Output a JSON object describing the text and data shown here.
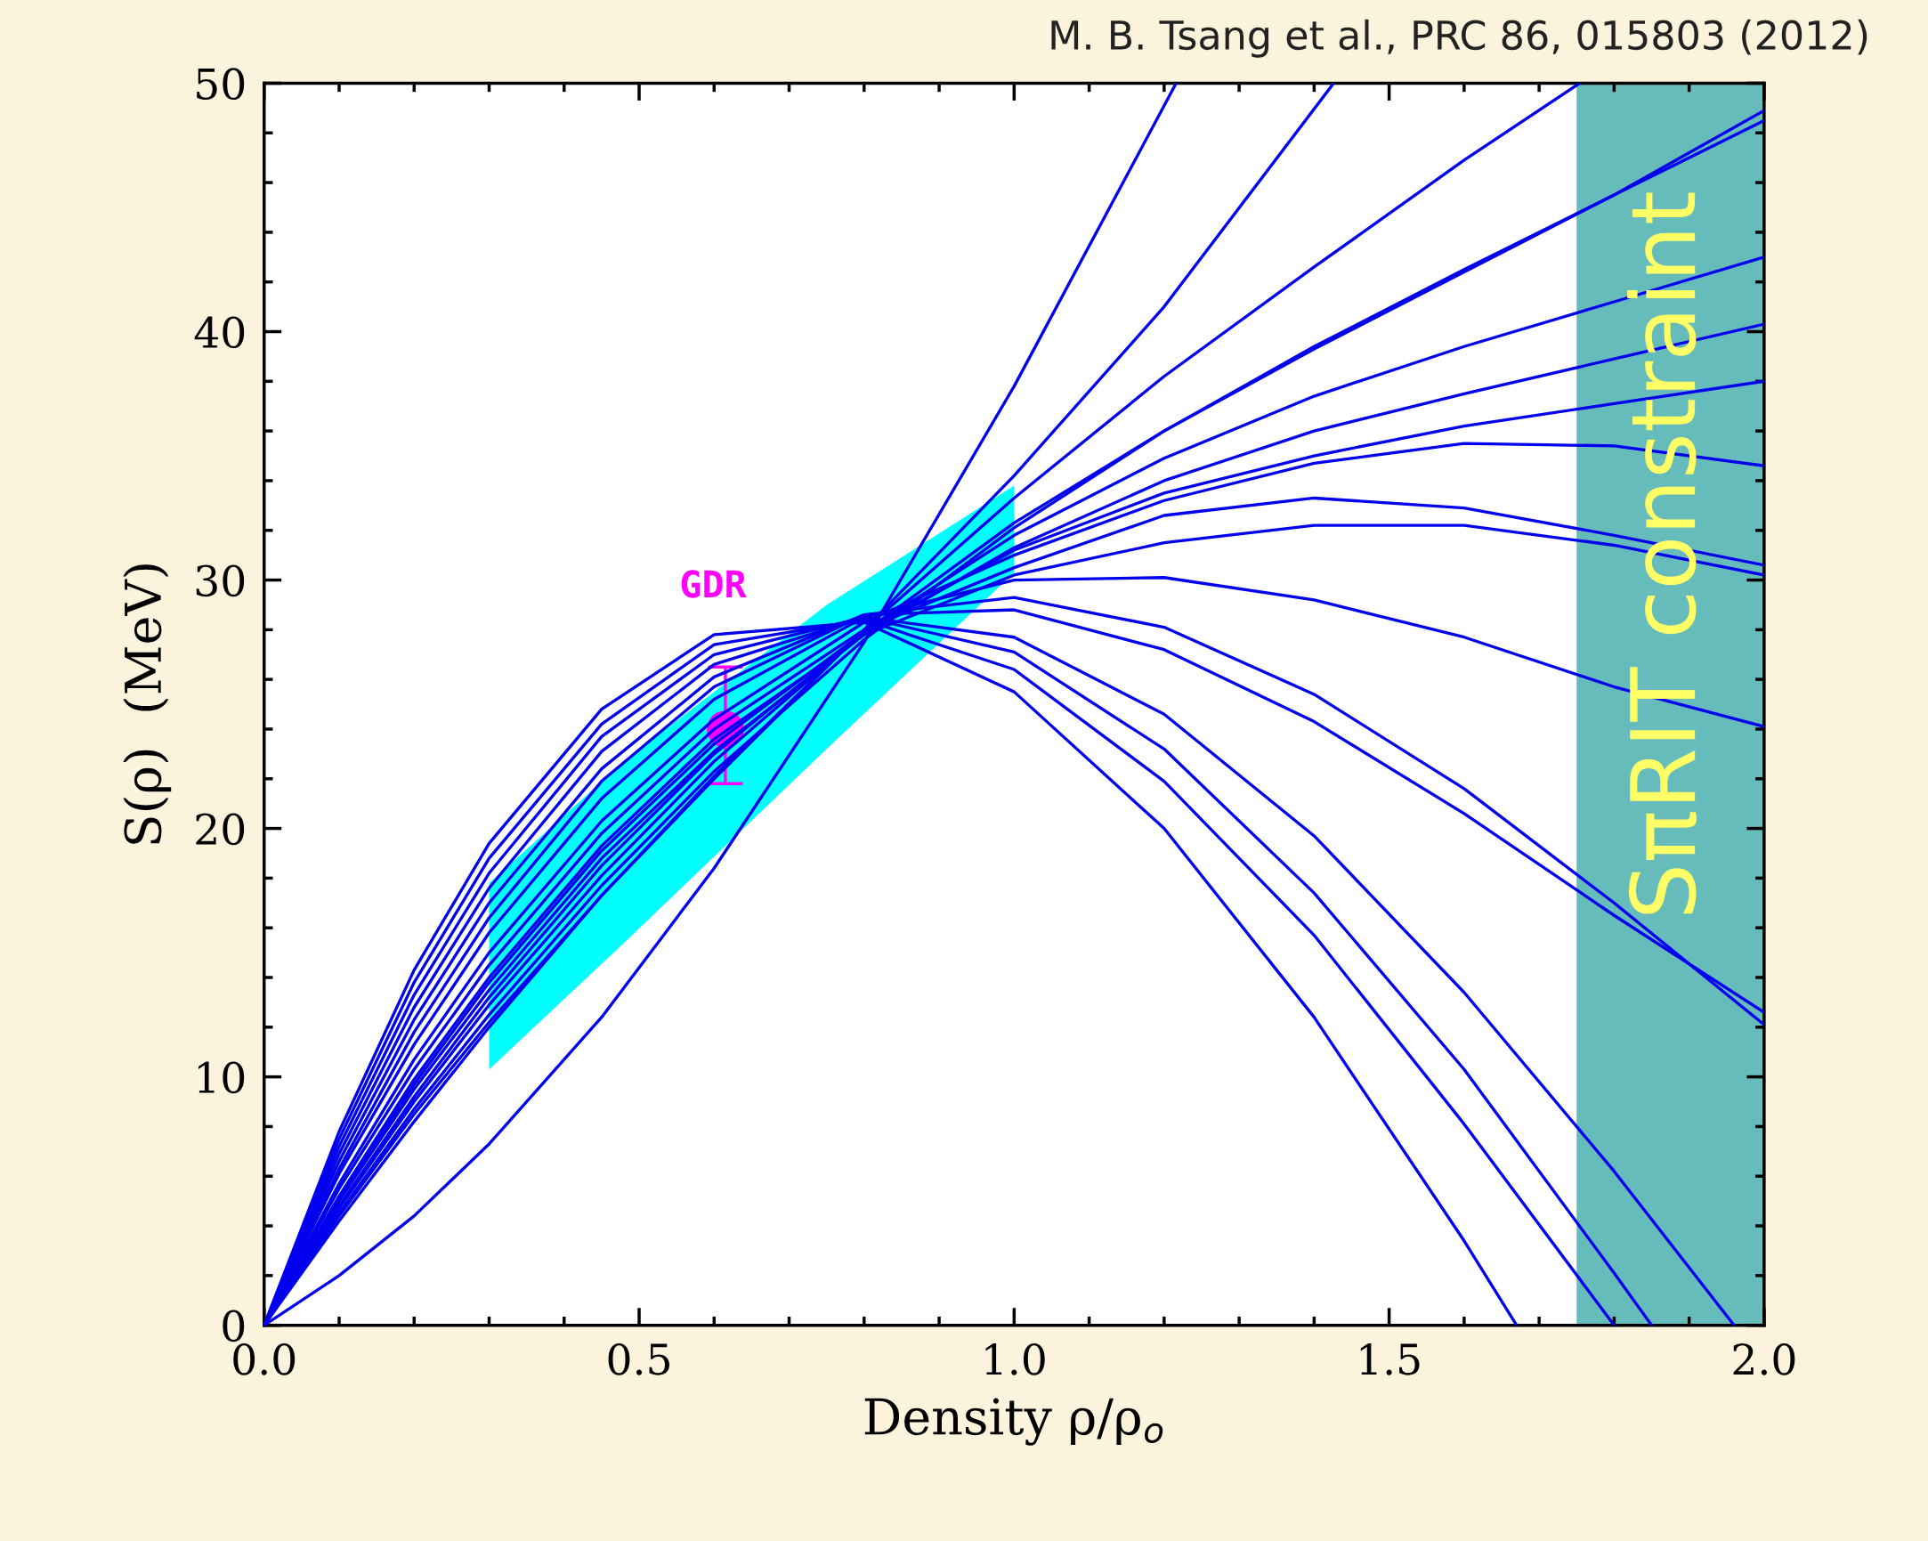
{
  "chart_data": {
    "type": "line",
    "xlabel": "Density ρ/ρ$_{o}$",
    "ylabel": "S(ρ)  (MeV)",
    "xlim": [
      0,
      2
    ],
    "ylim": [
      0,
      50
    ],
    "xticks": [
      {
        "value": 0,
        "label": "0.0"
      },
      {
        "value": 0.5,
        "label": "0.5"
      },
      {
        "value": 1.0,
        "label": "1.0"
      },
      {
        "value": 1.5,
        "label": "1.5"
      },
      {
        "value": 2.0,
        "label": "2.0"
      }
    ],
    "yticks": [
      0,
      10,
      20,
      30,
      40,
      50
    ],
    "grid": false,
    "annotations": [
      "M. B. Tsang et al., PRC 86, 015803 (2012)"
    ],
    "bands": [
      {
        "axis": "x",
        "from": 1.75,
        "to": 2.0,
        "label": "SπRIT constraint",
        "color": "#66bbbb"
      }
    ],
    "series": [
      {
        "type": "area",
        "color": "#00ffff",
        "x": [
          0.3,
          0.48,
          0.75,
          1.0
        ],
        "lower": [
          10.3,
          15.4,
          23.2,
          30.3
        ],
        "upper": [
          17.8,
          22.7,
          29.0,
          33.8
        ],
        "values": [
          null,
          null,
          null,
          null
        ]
      },
      {
        "color": "#0000ee",
        "x": [
          0,
          0.1,
          0.2,
          0.3,
          0.45,
          0.6,
          0.8,
          1.0,
          1.216
        ],
        "values": [
          0,
          2.0,
          4.4,
          7.3,
          12.4,
          18.4,
          27.5,
          37.8,
          50
        ]
      },
      {
        "color": "#0000ee",
        "x": [
          0,
          0.1,
          0.2,
          0.3,
          0.45,
          0.6,
          0.8,
          1.0,
          1.2,
          1.426
        ],
        "values": [
          0,
          4.4,
          8.5,
          12.2,
          17.3,
          22.0,
          28.0,
          34.2,
          41.0,
          50
        ]
      },
      {
        "color": "#0000ee",
        "x": [
          0,
          0.1,
          0.2,
          0.3,
          0.45,
          0.6,
          0.8,
          1.0,
          1.2,
          1.4,
          1.6,
          1.754
        ],
        "values": [
          0,
          4.2,
          8.2,
          12.0,
          17.3,
          22.1,
          28.0,
          33.3,
          38.2,
          42.6,
          46.9,
          50
        ]
      },
      {
        "color": "#0000ee",
        "x": [
          0,
          0.1,
          0.2,
          0.3,
          0.45,
          0.6,
          0.8,
          1.0,
          1.2,
          1.4,
          1.6,
          1.8,
          2.0
        ],
        "values": [
          0,
          4.7,
          9.0,
          12.9,
          18.1,
          22.7,
          27.9,
          32.3,
          36.0,
          39.3,
          42.4,
          45.5,
          48.9
        ]
      },
      {
        "color": "#0000ee",
        "x": [
          0,
          0.1,
          0.2,
          0.3,
          0.45,
          0.6,
          0.8,
          1.0,
          1.2,
          1.4,
          1.6,
          1.8,
          2.0
        ],
        "values": [
          0,
          4.5,
          8.7,
          12.5,
          17.7,
          22.3,
          27.6,
          32.1,
          36.0,
          39.4,
          42.5,
          45.5,
          48.5
        ]
      },
      {
        "color": "#0000ee",
        "x": [
          0,
          0.1,
          0.2,
          0.3,
          0.45,
          0.6,
          0.8,
          1.0,
          1.2,
          1.4,
          1.6,
          1.8,
          2.0
        ],
        "values": [
          0,
          4.8,
          9.2,
          13.2,
          18.5,
          23.0,
          27.9,
          31.8,
          34.9,
          37.4,
          39.4,
          41.2,
          43.0
        ]
      },
      {
        "color": "#0000ee",
        "x": [
          0,
          0.1,
          0.2,
          0.3,
          0.45,
          0.6,
          0.8,
          1.0,
          1.2,
          1.4,
          1.6,
          1.8,
          2.0
        ],
        "values": [
          0,
          5.0,
          9.5,
          13.5,
          18.8,
          23.1,
          27.8,
          31.3,
          34.0,
          36.0,
          37.5,
          38.9,
          40.3
        ]
      },
      {
        "color": "#0000ee",
        "x": [
          0,
          0.1,
          0.2,
          0.3,
          0.45,
          0.6,
          0.8,
          1.0,
          1.2,
          1.4,
          1.6,
          1.8,
          2.0
        ],
        "values": [
          0,
          5.1,
          9.7,
          13.8,
          19.1,
          23.4,
          27.9,
          31.2,
          33.5,
          35.0,
          36.2,
          37.1,
          38.0
        ]
      },
      {
        "color": "#0000ee",
        "x": [
          0,
          0.1,
          0.2,
          0.3,
          0.45,
          0.6,
          0.8,
          1.0,
          1.2,
          1.4,
          1.6,
          1.8,
          2.0
        ],
        "values": [
          0,
          5.7,
          10.7,
          15.0,
          20.3,
          24.4,
          28.3,
          31.0,
          33.2,
          34.7,
          35.5,
          35.4,
          34.6
        ]
      },
      {
        "color": "#0000ee",
        "x": [
          0,
          0.1,
          0.2,
          0.3,
          0.45,
          0.6,
          0.8,
          1.0,
          1.2,
          1.4,
          1.6,
          1.8,
          2.0
        ],
        "values": [
          0,
          5.5,
          10.3,
          14.5,
          19.8,
          24.0,
          28.0,
          30.5,
          32.6,
          33.3,
          32.9,
          31.8,
          30.6
        ]
      },
      {
        "color": "#0000ee",
        "x": [
          0,
          0.1,
          0.2,
          0.3,
          0.45,
          0.6,
          0.8,
          1.0,
          1.2,
          1.4,
          1.6,
          1.8,
          2.0
        ],
        "values": [
          0,
          5.2,
          9.9,
          14.0,
          19.3,
          23.6,
          27.8,
          30.2,
          31.5,
          32.2,
          32.2,
          31.4,
          30.2
        ]
      },
      {
        "color": "#0000ee",
        "x": [
          0,
          0.1,
          0.2,
          0.3,
          0.45,
          0.6,
          0.8,
          1.0,
          1.2,
          1.4,
          1.6,
          1.8,
          2.0
        ],
        "values": [
          0,
          6.1,
          11.3,
          15.8,
          21.2,
          25.2,
          28.5,
          30.0,
          30.1,
          29.2,
          27.7,
          25.7,
          24.1
        ]
      },
      {
        "color": "#0000ee",
        "x": [
          0,
          0.1,
          0.2,
          0.3,
          0.45,
          0.6,
          0.8,
          1.0,
          1.2,
          1.4,
          1.6,
          1.8,
          2.0
        ],
        "values": [
          0,
          6.3,
          11.8,
          16.4,
          21.9,
          25.7,
          28.6,
          29.3,
          28.1,
          25.4,
          21.6,
          17.0,
          12.1
        ]
      },
      {
        "color": "#0000ee",
        "x": [
          0,
          0.1,
          0.2,
          0.3,
          0.45,
          0.6,
          0.8,
          1.0,
          1.2,
          1.4,
          1.6,
          1.8,
          2.0
        ],
        "values": [
          0,
          6.6,
          12.3,
          17.0,
          22.4,
          26.1,
          28.6,
          28.8,
          27.2,
          24.3,
          20.6,
          16.5,
          12.6
        ]
      },
      {
        "color": "#0000ee",
        "x": [
          0,
          0.1,
          0.2,
          0.3,
          0.45,
          0.6,
          0.8,
          1.0,
          1.2,
          1.4,
          1.6,
          1.8,
          1.96
        ],
        "values": [
          0,
          6.9,
          12.8,
          17.6,
          23.1,
          26.6,
          28.5,
          27.7,
          24.6,
          19.7,
          13.4,
          6.2,
          0
        ]
      },
      {
        "color": "#0000ee",
        "x": [
          0,
          0.1,
          0.2,
          0.3,
          0.45,
          0.6,
          0.8,
          1.0,
          1.2,
          1.4,
          1.6,
          1.8,
          1.85
        ],
        "values": [
          0,
          7.2,
          13.3,
          18.2,
          23.7,
          27.0,
          28.5,
          27.1,
          23.2,
          17.4,
          10.3,
          2.1,
          0
        ]
      },
      {
        "color": "#0000ee",
        "x": [
          0,
          0.1,
          0.2,
          0.3,
          0.45,
          0.6,
          0.8,
          1.0,
          1.2,
          1.4,
          1.6,
          1.8
        ],
        "values": [
          0,
          7.5,
          13.8,
          18.8,
          24.2,
          27.4,
          28.4,
          26.4,
          21.9,
          15.7,
          8.1,
          0
        ]
      },
      {
        "color": "#0000ee",
        "x": [
          0,
          0.1,
          0.2,
          0.3,
          0.45,
          0.6,
          0.8,
          1.0,
          1.2,
          1.4,
          1.6,
          1.67
        ],
        "values": [
          0,
          7.8,
          14.3,
          19.4,
          24.8,
          27.8,
          28.3,
          25.5,
          20.0,
          12.4,
          3.4,
          0
        ]
      },
      {
        "type": "scatter",
        "name": "GDR",
        "color": "#ff00ff",
        "marker": "circle",
        "x": [
          0.615
        ],
        "values": [
          24.0
        ],
        "errors": [
          [
            21.8,
            26.5
          ]
        ]
      }
    ]
  }
}
